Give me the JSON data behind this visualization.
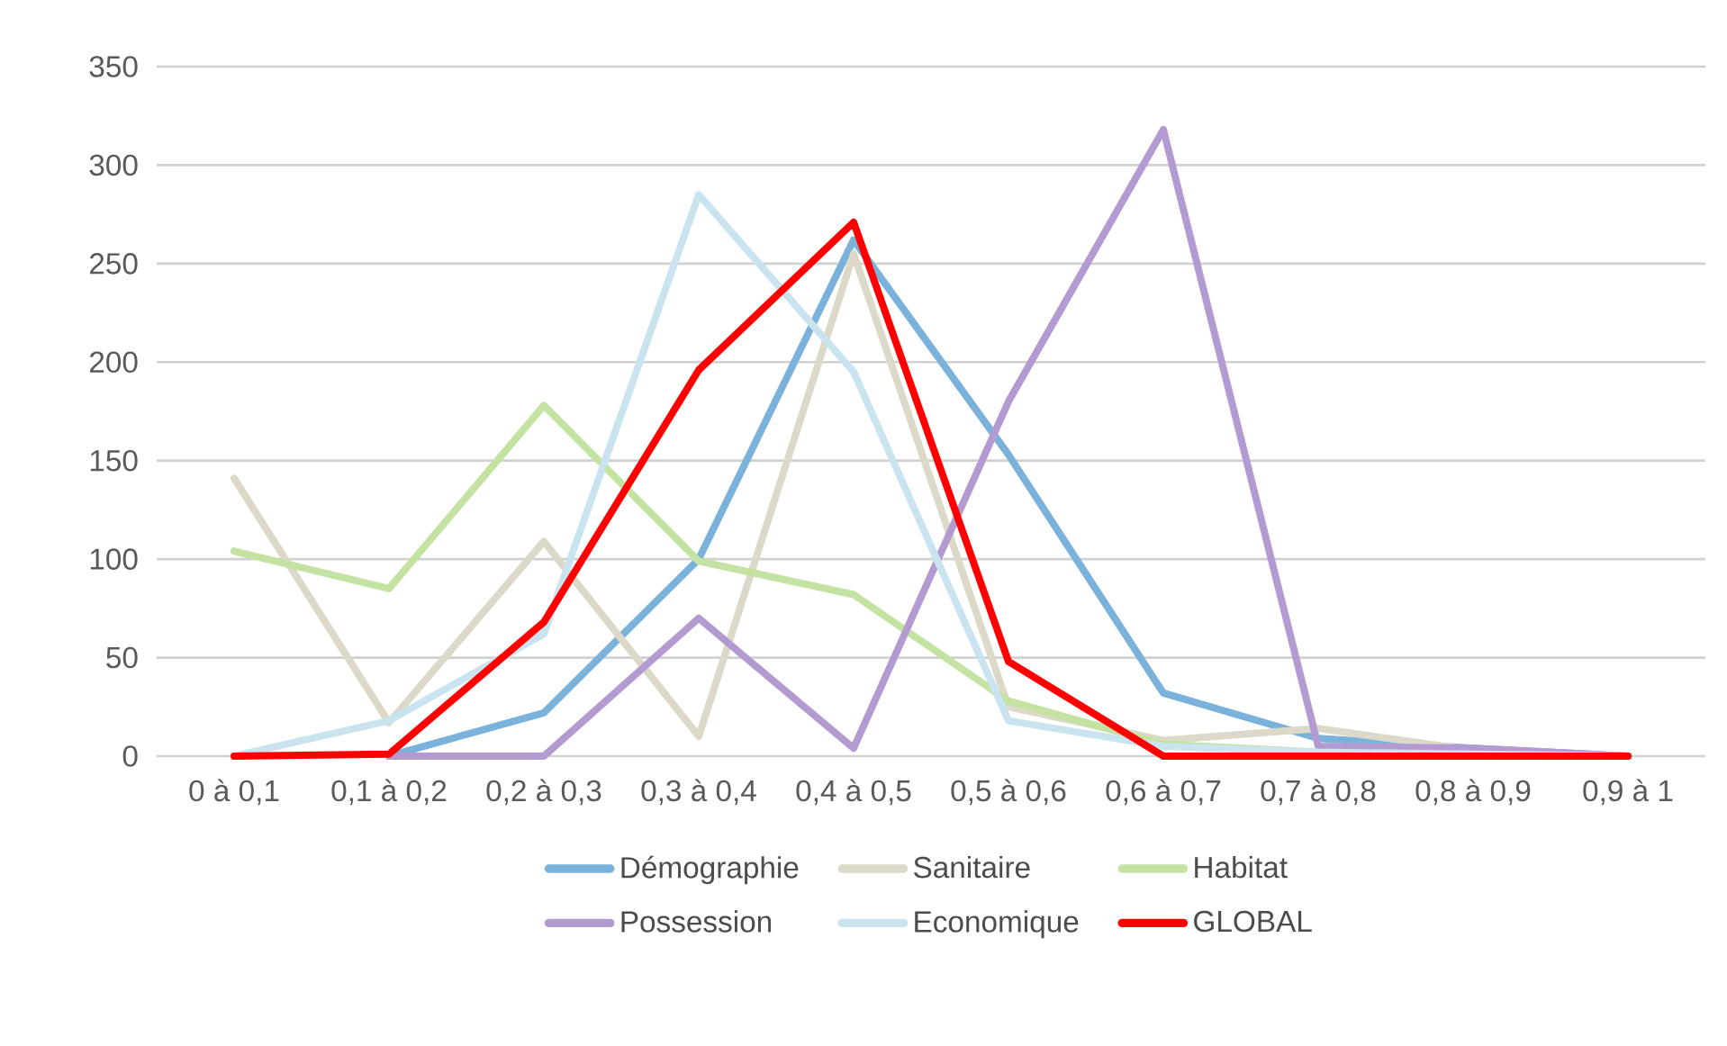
{
  "chart_data": {
    "type": "line",
    "categories": [
      "0 à 0,1",
      "0,1 à 0,2",
      "0,2 à 0,3",
      "0,3 à 0,4",
      "0,4 à 0,5",
      "0,5 à 0,6",
      "0,6 à 0,7",
      "0,7 à 0,8",
      "0,8 à 0,9",
      "0,9 à 1"
    ],
    "series": [
      {
        "name": "Démographie",
        "color": "#7bb2dc",
        "values": [
          null,
          0,
          22,
          100,
          262,
          153,
          32,
          9,
          4,
          0
        ]
      },
      {
        "name": "Sanitaire",
        "color": "#dcd9c8",
        "values": [
          141,
          17,
          109,
          10,
          255,
          25,
          8,
          14,
          3,
          0
        ]
      },
      {
        "name": "Habitat",
        "color": "#c4e2a2",
        "values": [
          104,
          85,
          178,
          99,
          82,
          28,
          6,
          2,
          0,
          0
        ]
      },
      {
        "name": "Possession",
        "color": "#b39bd2",
        "values": [
          null,
          0,
          0,
          70,
          4,
          180,
          318,
          5,
          4,
          0
        ]
      },
      {
        "name": "Economique",
        "color": "#c9e4ee",
        "values": [
          0,
          18,
          62,
          285,
          195,
          18,
          5,
          2,
          1,
          0
        ]
      },
      {
        "name": "GLOBAL",
        "color": "#ff0000",
        "values": [
          0,
          1,
          68,
          196,
          271,
          48,
          0,
          0,
          0,
          0
        ]
      }
    ],
    "ylim": [
      0,
      350
    ],
    "yticks": [
      0,
      50,
      100,
      150,
      200,
      250,
      300,
      350
    ],
    "grid": "y",
    "legend": "bottom",
    "marker": "none",
    "line_style": "solid"
  }
}
